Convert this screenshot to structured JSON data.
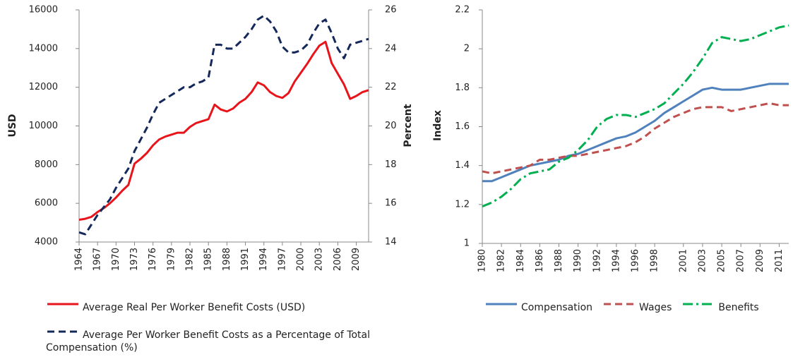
{
  "chart_data": [
    {
      "type": "line",
      "ylabel": "USD",
      "y2label": "Percent",
      "x": [
        1964,
        1965,
        1966,
        1967,
        1968,
        1969,
        1970,
        1971,
        1972,
        1973,
        1974,
        1975,
        1976,
        1977,
        1978,
        1979,
        1980,
        1981,
        1982,
        1983,
        1984,
        1985,
        1986,
        1987,
        1988,
        1989,
        1990,
        1991,
        1992,
        1993,
        1994,
        1995,
        1996,
        1997,
        1998,
        1999,
        2000,
        2001,
        2002,
        2003,
        2004,
        2005,
        2006,
        2007,
        2008,
        2009,
        2010,
        2011
      ],
      "xlim": [
        1964,
        2011
      ],
      "xticks": [
        1964,
        1967,
        1970,
        1973,
        1976,
        1979,
        1982,
        1985,
        1988,
        1991,
        1994,
        1997,
        2000,
        2003,
        2006,
        2009
      ],
      "ylim": [
        4000,
        16000
      ],
      "yticks": [
        4000,
        6000,
        8000,
        10000,
        12000,
        14000,
        16000
      ],
      "y2lim": [
        14,
        26
      ],
      "y2ticks": [
        14,
        16,
        18,
        20,
        22,
        24,
        26
      ],
      "legend": "bottom-stacked",
      "series": [
        {
          "name": "Average Real Per Worker Benefit Costs (USD)",
          "color": "#e8141b",
          "dash": "solid",
          "values": [
            5150,
            5200,
            5300,
            5550,
            5750,
            6000,
            6300,
            6650,
            6950,
            8050,
            8300,
            8600,
            9000,
            9300,
            9450,
            9550,
            9650,
            9650,
            9950,
            10150,
            10250,
            10350,
            11100,
            10850,
            10750,
            10900,
            11200,
            11400,
            11750,
            12250,
            12100,
            11750,
            11550,
            11450,
            11700,
            12300,
            12750,
            13200,
            13700,
            14150,
            14350,
            13250,
            12700,
            12150,
            11400,
            11550,
            11750,
            11850
          ]
        },
        {
          "name": "Average Per Worker Benefit Costs as a Percentage of Total Compensation (%)",
          "color": "#14285a",
          "dash": "dashed",
          "axis": "y2",
          "values": [
            14.5,
            14.4,
            14.9,
            15.4,
            15.8,
            16.2,
            16.8,
            17.3,
            17.8,
            18.7,
            19.3,
            19.9,
            20.6,
            21.2,
            21.4,
            21.6,
            21.8,
            22.0,
            22.0,
            22.2,
            22.3,
            22.5,
            24.2,
            24.2,
            24.0,
            24.0,
            24.3,
            24.6,
            25.0,
            25.5,
            25.7,
            25.4,
            24.9,
            24.1,
            23.8,
            23.8,
            23.9,
            24.2,
            24.8,
            25.3,
            25.5,
            24.8,
            24.0,
            23.5,
            24.2,
            24.3,
            24.4,
            24.5
          ]
        }
      ]
    },
    {
      "type": "line",
      "ylabel": "Index",
      "x": [
        1980,
        1981,
        1982,
        1983,
        1984,
        1985,
        1986,
        1987,
        1988,
        1989,
        1990,
        1991,
        1992,
        1993,
        1994,
        1995,
        1996,
        1997,
        1998,
        1999,
        2000,
        2001,
        2002,
        2003,
        2004,
        2005,
        2006,
        2007,
        2008,
        2009,
        2010,
        2011,
        2012
      ],
      "xlim": [
        1980,
        2012
      ],
      "xticks": [
        1980,
        1982,
        1984,
        1986,
        1988,
        1990,
        1992,
        1994,
        1996,
        1998,
        2001,
        2003,
        2005,
        2007,
        2009,
        2011
      ],
      "ylim": [
        1,
        2.2
      ],
      "yticks": [
        1,
        1.2,
        1.4,
        1.6,
        1.8,
        2,
        2.2
      ],
      "legend": "bottom-row",
      "series": [
        {
          "name": "Compensation",
          "color": "#4f81bd",
          "dash": "solid",
          "values": [
            1.32,
            1.32,
            1.34,
            1.36,
            1.38,
            1.4,
            1.41,
            1.42,
            1.43,
            1.45,
            1.46,
            1.48,
            1.5,
            1.52,
            1.54,
            1.55,
            1.57,
            1.6,
            1.63,
            1.67,
            1.7,
            1.73,
            1.76,
            1.79,
            1.8,
            1.79,
            1.79,
            1.79,
            1.8,
            1.81,
            1.82,
            1.82,
            1.82
          ]
        },
        {
          "name": "Wages",
          "color": "#c0504d",
          "dash": "dashed",
          "values": [
            1.37,
            1.36,
            1.37,
            1.38,
            1.39,
            1.4,
            1.43,
            1.43,
            1.44,
            1.45,
            1.45,
            1.46,
            1.47,
            1.48,
            1.49,
            1.5,
            1.52,
            1.55,
            1.59,
            1.62,
            1.65,
            1.67,
            1.69,
            1.7,
            1.7,
            1.7,
            1.68,
            1.69,
            1.7,
            1.71,
            1.72,
            1.71,
            1.71
          ]
        },
        {
          "name": "Benefits",
          "color": "#00b050",
          "dash": "dashdot",
          "values": [
            1.19,
            1.21,
            1.24,
            1.28,
            1.33,
            1.36,
            1.37,
            1.38,
            1.42,
            1.44,
            1.48,
            1.53,
            1.6,
            1.64,
            1.66,
            1.66,
            1.65,
            1.67,
            1.69,
            1.72,
            1.77,
            1.82,
            1.88,
            1.95,
            2.03,
            2.06,
            2.05,
            2.04,
            2.05,
            2.07,
            2.09,
            2.11,
            2.12
          ]
        }
      ]
    }
  ]
}
